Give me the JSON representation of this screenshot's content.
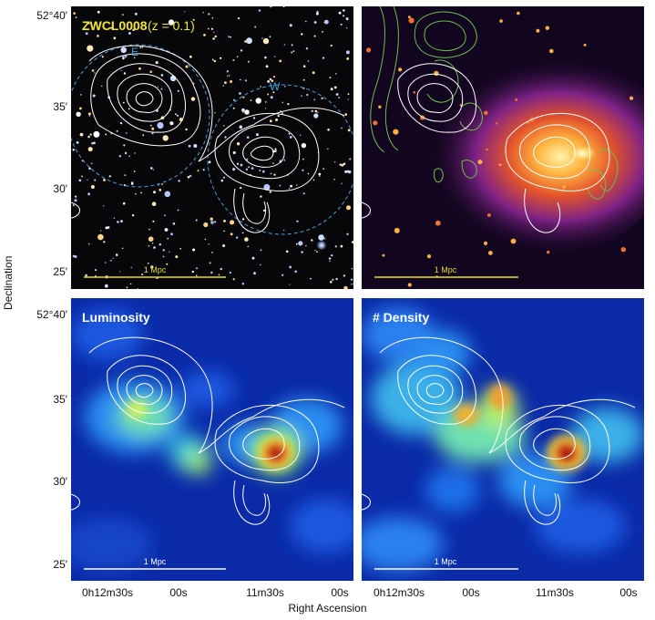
{
  "panels": {
    "optical": {
      "title_cluster": "ZWCL0008",
      "title_redshift": "(z = 0.1)",
      "label_e": "E",
      "label_w": "W",
      "scalebar": "1 Mpc"
    },
    "xray": {
      "scalebar": "1 Mpc"
    },
    "luminosity": {
      "title": "Luminosity",
      "scalebar": "1 Mpc"
    },
    "density": {
      "title": "# Density",
      "scalebar": "1 Mpc"
    }
  },
  "axes": {
    "ylabel": "Declination",
    "xlabel": "Right Ascension",
    "yticks_top": [
      "52°40′",
      "35′",
      "30′",
      "25′"
    ],
    "yticks_bottom": [
      "52°40′",
      "35′",
      "30′",
      "25′"
    ],
    "xticks_left": [
      "0h12m30s",
      "00s",
      "11m30s",
      "00s"
    ],
    "xticks_right": [
      "0h12m30s",
      "00s",
      "11m30s",
      "00s"
    ]
  },
  "colors": {
    "title_yellow": "#f2e82a",
    "scalebar_yellow": "#e6dc2a",
    "dashed_circle": "#4aa0d8",
    "contour_white": "#ffffff",
    "contour_green": "#6cc04a"
  }
}
